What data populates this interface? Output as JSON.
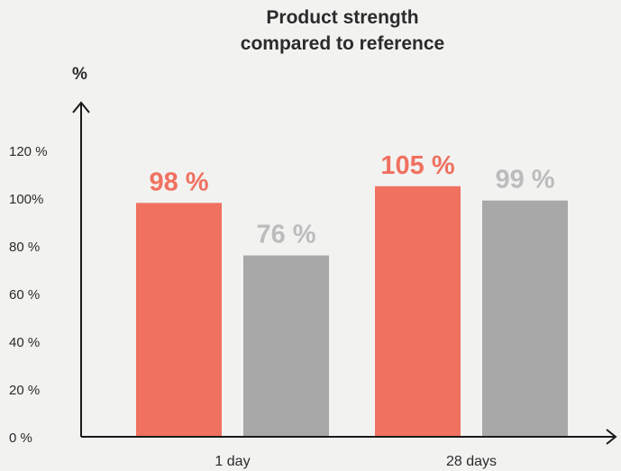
{
  "chart_data": {
    "type": "bar",
    "title_lines": [
      "Product strength",
      "compared to reference"
    ],
    "ylabel": "%",
    "xlabel": "",
    "categories": [
      "1 day",
      "28 days"
    ],
    "series": [
      {
        "values": [
          98,
          105
        ],
        "value_labels": [
          "98 %",
          "105 %"
        ],
        "color": "#f07160",
        "label_color": "#f07160"
      },
      {
        "values": [
          76,
          99
        ],
        "value_labels": [
          "76 %",
          "99 %"
        ],
        "color": "#a8a8a8",
        "label_color": "#bcbcbc"
      }
    ],
    "ylim": [
      0,
      120
    ],
    "yticks": [
      0,
      20,
      40,
      60,
      80,
      100,
      120
    ],
    "ytick_labels": [
      "0 %",
      "20 %",
      "40 %",
      "60 %",
      "80 %",
      "100%",
      "120 %"
    ],
    "grid": false,
    "legend": "none"
  },
  "colors": {
    "axis": "#1a1a1a",
    "text": "#2b2b2b",
    "background": "#f2f2f1"
  }
}
